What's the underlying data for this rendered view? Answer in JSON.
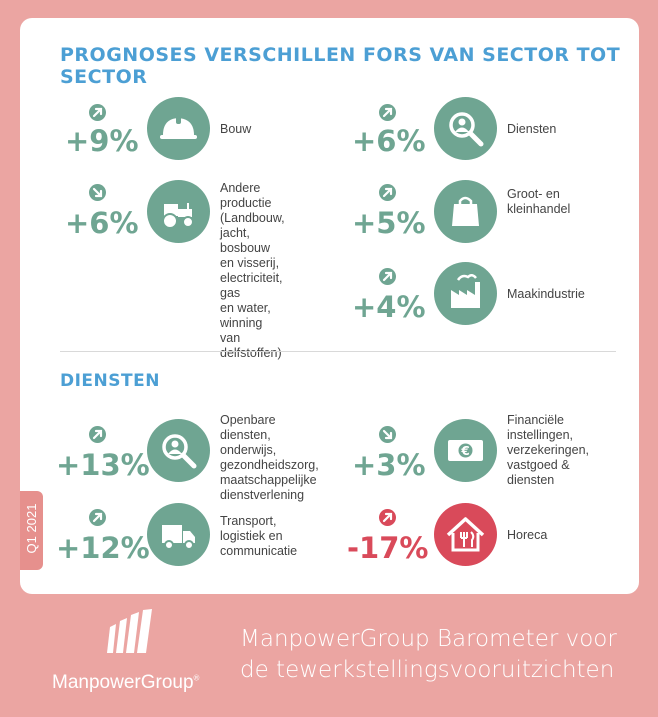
{
  "section1": {
    "title": "PROGNOSES VERSCHILLEN FORS VAN SECTOR TOT SECTOR",
    "items": [
      {
        "percent": "+9%",
        "label": "Bouw",
        "trend": "up",
        "icon": "hardhat-icon"
      },
      {
        "percent": "+6%",
        "label": "Andere productie\n(Landbouw,\njacht, bosbouw\nen visserij,\nelectriciteit, gas\nen water, winning\nvan delfstoffen)",
        "trend": "down",
        "icon": "tractor-icon"
      },
      {
        "percent": "+6%",
        "label": "Diensten",
        "trend": "up",
        "icon": "magnifier-person-icon"
      },
      {
        "percent": "+5%",
        "label": "Groot- en\nkleinhandel",
        "trend": "up",
        "icon": "shopping-bag-icon"
      },
      {
        "percent": "+4%",
        "label": "Maakindustrie",
        "trend": "up",
        "icon": "factory-icon"
      }
    ]
  },
  "section2": {
    "title": "DIENSTEN",
    "items": [
      {
        "percent": "+13%",
        "label": "Openbare diensten,\nonderwijs,\ngezondheidszorg,\nmaatschappelijke\ndienstverlening",
        "trend": "up",
        "icon": "magnifier-person-icon"
      },
      {
        "percent": "+12%",
        "label": "Transport,\nlogistiek en\ncommunicatie",
        "trend": "up",
        "icon": "truck-icon"
      },
      {
        "percent": "+3%",
        "label": "Financiële\ninstellingen,\nverzekeringen,\nvastgoed &\ndiensten",
        "trend": "down",
        "icon": "euro-banknote-icon"
      },
      {
        "percent": "-17%",
        "label": "Horeca",
        "trend": "up",
        "icon": "restaurant-house-icon"
      }
    ]
  },
  "badge": "Q1 2021",
  "brand": "ManpowerGroup",
  "tagline": {
    "line1": "ManpowerGroup Barometer voor",
    "line2": "de tewerkstellingsvooruitzichten"
  },
  "colors": {
    "background": "#eba5a2",
    "positive": "#6fa592",
    "negative": "#d94a5a",
    "heading": "#4c9fd4"
  }
}
